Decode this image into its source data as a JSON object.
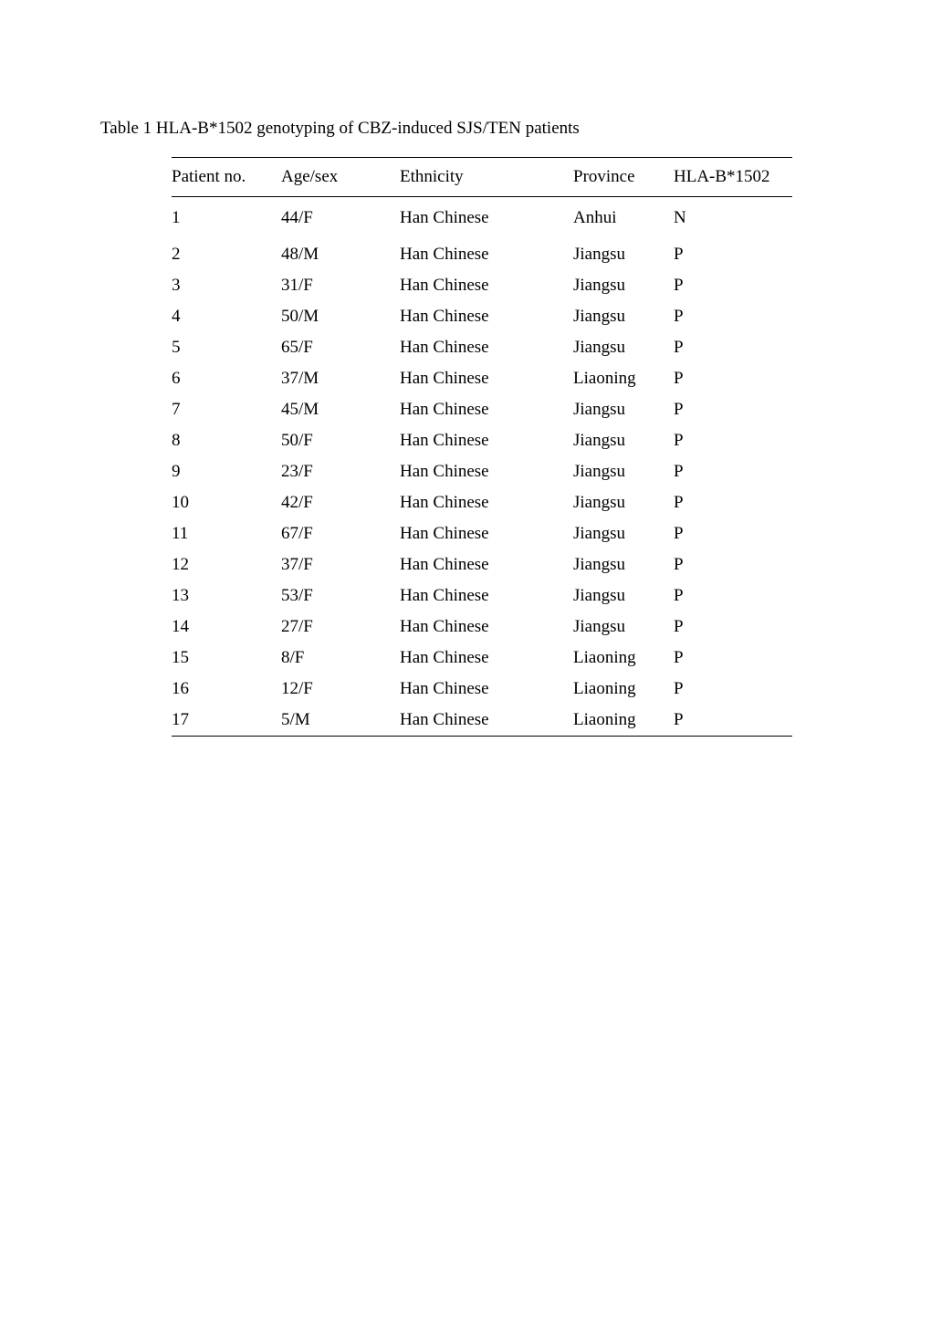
{
  "caption": "Table 1 HLA-B*1502 genotyping of CBZ-induced SJS/TEN patients",
  "table": {
    "columns": [
      "Patient no.",
      "Age/sex",
      "Ethnicity",
      "Province",
      "HLA-B*1502"
    ],
    "rows": [
      [
        "1",
        "44/F",
        "Han Chinese",
        "Anhui",
        "N"
      ],
      [
        "2",
        "48/M",
        "Han Chinese",
        "Jiangsu",
        "P"
      ],
      [
        "3",
        "31/F",
        "Han Chinese",
        "Jiangsu",
        "P"
      ],
      [
        "4",
        "50/M",
        "Han Chinese",
        "Jiangsu",
        "P"
      ],
      [
        "5",
        "65/F",
        "Han Chinese",
        "Jiangsu",
        "P"
      ],
      [
        "6",
        "37/M",
        "Han Chinese",
        "Liaoning",
        "P"
      ],
      [
        "7",
        "45/M",
        "Han Chinese",
        "Jiangsu",
        "P"
      ],
      [
        "8",
        "50/F",
        "Han Chinese",
        "Jiangsu",
        "P"
      ],
      [
        "9",
        "23/F",
        "Han Chinese",
        "Jiangsu",
        "P"
      ],
      [
        "10",
        "42/F",
        "Han Chinese",
        "Jiangsu",
        "P"
      ],
      [
        "11",
        "67/F",
        "Han Chinese",
        "Jiangsu",
        "P"
      ],
      [
        "12",
        "37/F",
        "Han Chinese",
        "Jiangsu",
        "P"
      ],
      [
        "13",
        "53/F",
        "Han Chinese",
        "Jiangsu",
        "P"
      ],
      [
        "14",
        "27/F",
        "Han Chinese",
        "Jiangsu",
        "P"
      ],
      [
        "15",
        "8/F",
        "Han Chinese",
        "Liaoning",
        "P"
      ],
      [
        "16",
        "12/F",
        "Han Chinese",
        "Liaoning",
        "P"
      ],
      [
        "17",
        "5/M",
        "Han Chinese",
        "Liaoning",
        "P"
      ]
    ]
  }
}
